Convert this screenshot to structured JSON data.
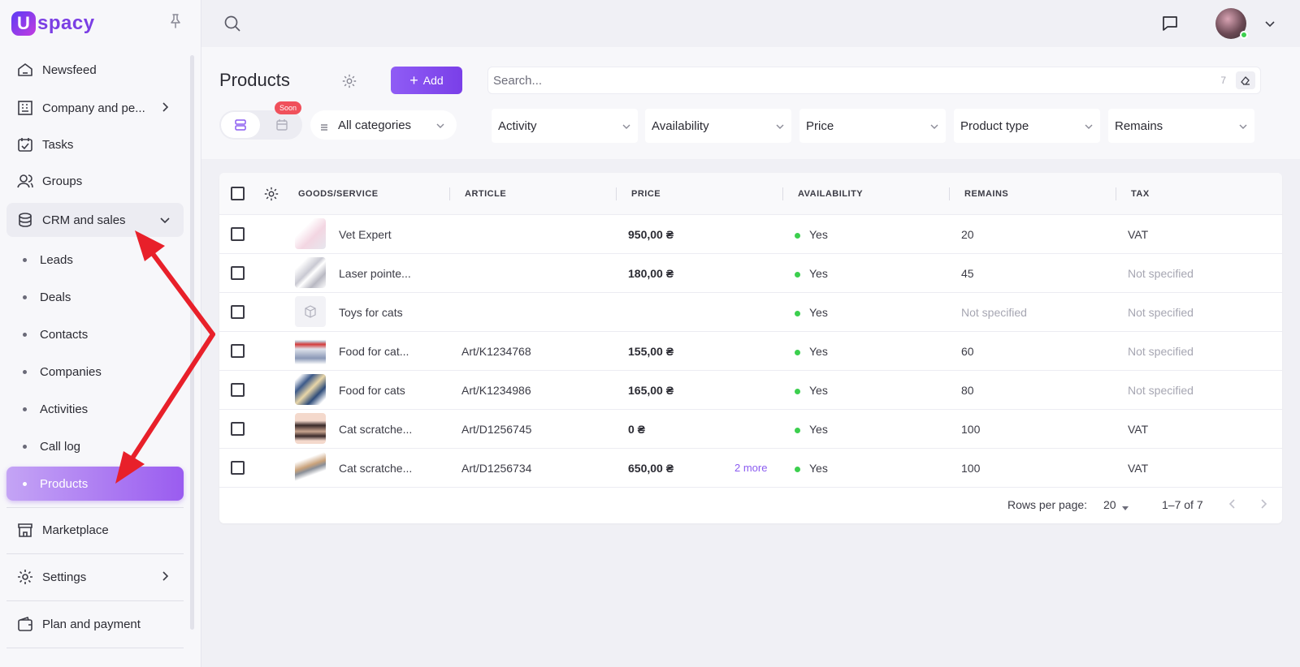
{
  "app": {
    "logo_mark": "U",
    "logo_text": "spacy"
  },
  "sidebar": {
    "items": [
      {
        "label": "Newsfeed"
      },
      {
        "label": "Company and pe..."
      },
      {
        "label": "Tasks"
      },
      {
        "label": "Groups"
      },
      {
        "label": "CRM and sales"
      }
    ],
    "crm_sub": [
      {
        "label": "Leads"
      },
      {
        "label": "Deals"
      },
      {
        "label": "Contacts"
      },
      {
        "label": "Companies"
      },
      {
        "label": "Activities"
      },
      {
        "label": "Call log"
      },
      {
        "label": "Products"
      }
    ],
    "bottom": [
      {
        "label": "Marketplace"
      },
      {
        "label": "Settings"
      },
      {
        "label": "Plan and payment"
      }
    ],
    "active_item": "Products"
  },
  "header": {
    "title": "Products",
    "add_label": "Add",
    "search_placeholder": "Search...",
    "search_count": "7",
    "soon_badge": "Soon",
    "category": "All categories",
    "filters": [
      "Activity",
      "Availability",
      "Price",
      "Product type",
      "Remains"
    ]
  },
  "table": {
    "columns": [
      "GOODS/SERVICE",
      "ARTICLE",
      "PRICE",
      "AVAILABILITY",
      "REMAINS",
      "TAX"
    ],
    "rows": [
      {
        "name": "Vet Expert",
        "article": "",
        "price": "950,00 ₴",
        "more": "",
        "availability": "Yes",
        "remains": "20",
        "tax": "VAT"
      },
      {
        "name": "Laser pointe...",
        "article": "",
        "price": "180,00 ₴",
        "more": "",
        "availability": "Yes",
        "remains": "45",
        "tax": "Not specified"
      },
      {
        "name": "Toys for cats",
        "article": "",
        "price": "",
        "more": "",
        "availability": "Yes",
        "remains": "Not specified",
        "tax": "Not specified"
      },
      {
        "name": "Food for cat...",
        "article": "Art/K1234768",
        "price": "155,00 ₴",
        "more": "",
        "availability": "Yes",
        "remains": "60",
        "tax": "Not specified"
      },
      {
        "name": "Food for cats",
        "article": "Art/K1234986",
        "price": "165,00 ₴",
        "more": "",
        "availability": "Yes",
        "remains": "80",
        "tax": "Not specified"
      },
      {
        "name": "Cat scratche...",
        "article": "Art/D1256745",
        "price": "0 ₴",
        "more": "",
        "availability": "Yes",
        "remains": "100",
        "tax": "VAT"
      },
      {
        "name": "Cat scratche...",
        "article": "Art/D1256734",
        "price": "650,00 ₴",
        "more": "2 more",
        "availability": "Yes",
        "remains": "100",
        "tax": "VAT"
      }
    ]
  },
  "pagination": {
    "rows_per_page_label": "Rows per page:",
    "rows_per_page": "20",
    "range": "1–7 of 7"
  },
  "colors": {
    "accent": "#8b5cf0",
    "available": "#3ccf4e",
    "badge": "#f0505b",
    "annotation_arrow": "#e8202a"
  },
  "icons": [
    "pin-icon",
    "home-icon",
    "building-icon",
    "calendar-check-icon",
    "users-icon",
    "coins-icon",
    "store-icon",
    "gear-icon",
    "wallet-icon",
    "search-icon",
    "chat-icon",
    "eraser-icon",
    "list-view-icon",
    "calendar-icon",
    "chevron-down-icon",
    "chevron-right-icon",
    "chevron-left-icon"
  ]
}
